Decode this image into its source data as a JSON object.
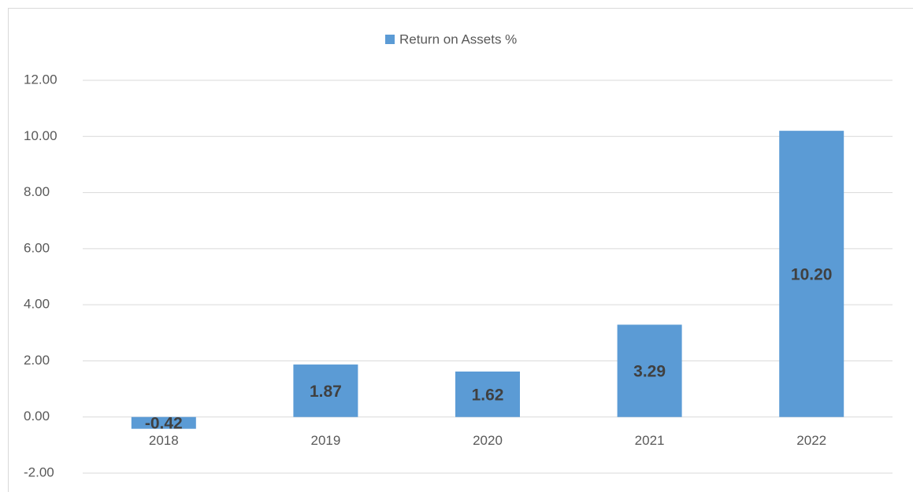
{
  "chart_data": {
    "type": "bar",
    "legend": "Return on Assets %",
    "categories": [
      "2018",
      "2019",
      "2020",
      "2021",
      "2022"
    ],
    "values": [
      -0.42,
      1.87,
      1.62,
      3.29,
      10.2
    ],
    "value_labels": [
      "-0.42",
      "1.87",
      "1.62",
      "3.29",
      "10.20"
    ],
    "color": "#5b9bd5",
    "ylim": [
      -2,
      12
    ],
    "yticks": [
      {
        "value": -2,
        "label": "-2.00"
      },
      {
        "value": 0,
        "label": "0.00"
      },
      {
        "value": 2,
        "label": "2.00"
      },
      {
        "value": 4,
        "label": "4.00"
      },
      {
        "value": 6,
        "label": "6.00"
      },
      {
        "value": 8,
        "label": "8.00"
      },
      {
        "value": 10,
        "label": "10.00"
      },
      {
        "value": 12,
        "label": "12.00"
      }
    ],
    "grid": true
  }
}
